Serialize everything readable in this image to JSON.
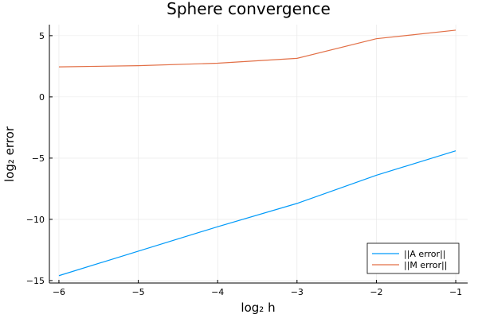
{
  "chart_data": {
    "type": "line",
    "title": "Sphere convergence",
    "xlabel": "log₂ h",
    "ylabel": "log₂ error",
    "xlim": [
      -6.12,
      -0.85
    ],
    "ylim": [
      -15.2,
      5.9
    ],
    "xticks": [
      -6,
      -5,
      -4,
      -3,
      -2,
      -1
    ],
    "xtick_labels": [
      "−6",
      "−5",
      "−4",
      "−3",
      "−2",
      "−1"
    ],
    "yticks": [
      -15,
      -10,
      -5,
      0,
      5
    ],
    "ytick_labels": [
      "−15",
      "−10",
      "−5",
      "0",
      "5"
    ],
    "grid": true,
    "legend_position": "bottom-right",
    "series": [
      {
        "name": "||A error||",
        "color": "#009af9",
        "x": [
          -6,
          -5,
          -4,
          -3,
          -2,
          -1
        ],
        "y": [
          -14.6,
          -12.6,
          -10.6,
          -8.7,
          -6.4,
          -4.4
        ]
      },
      {
        "name": "||M error||",
        "color": "#e26f46",
        "x": [
          -6,
          -5,
          -4,
          -3,
          -2,
          -1
        ],
        "y": [
          2.45,
          2.55,
          2.75,
          3.15,
          4.75,
          5.45
        ]
      }
    ]
  }
}
